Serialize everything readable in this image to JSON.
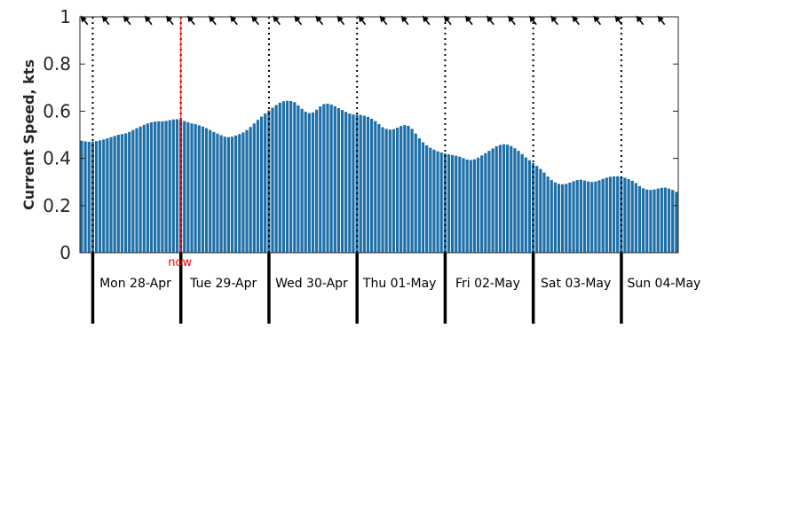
{
  "chart_data": {
    "type": "bar",
    "title": "",
    "xlabel": "",
    "ylabel": "Current Speed, kts",
    "ylim": [
      0,
      1
    ],
    "yticks": [
      "0",
      "0.2",
      "0.4",
      "0.6",
      "0.8",
      "1"
    ],
    "grid": false,
    "days": [
      "Mon 28-Apr",
      "Tue 29-Apr",
      "Wed 30-Apr",
      "Thu 01-May",
      "Fri 02-May",
      "Sat 03-May",
      "Sun 04-May"
    ],
    "now_marker": {
      "label": "now",
      "hours_after_start": 27.5
    },
    "hours_per_bar": 1,
    "series": [
      {
        "values": [
          0.475,
          0.472,
          0.47,
          0.471,
          0.473,
          0.476,
          0.48,
          0.485,
          0.49,
          0.495,
          0.5,
          0.503,
          0.506,
          0.512,
          0.52,
          0.528,
          0.535,
          0.542,
          0.548,
          0.553,
          0.556,
          0.557,
          0.557,
          0.559,
          0.562,
          0.565,
          0.566,
          0.564,
          0.558,
          0.553,
          0.548,
          0.545,
          0.54,
          0.535,
          0.528,
          0.52,
          0.512,
          0.505,
          0.498,
          0.492,
          0.49,
          0.492,
          0.497,
          0.503,
          0.51,
          0.52,
          0.533,
          0.548,
          0.563,
          0.577,
          0.59,
          0.603,
          0.615,
          0.626,
          0.636,
          0.642,
          0.644,
          0.643,
          0.638,
          0.625,
          0.61,
          0.598,
          0.592,
          0.595,
          0.606,
          0.62,
          0.63,
          0.632,
          0.628,
          0.621,
          0.613,
          0.605,
          0.597,
          0.59,
          0.586,
          0.585,
          0.584,
          0.581,
          0.576,
          0.568,
          0.558,
          0.545,
          0.532,
          0.525,
          0.522,
          0.524,
          0.53,
          0.537,
          0.541,
          0.538,
          0.525,
          0.505,
          0.485,
          0.468,
          0.455,
          0.445,
          0.437,
          0.43,
          0.425,
          0.421,
          0.417,
          0.414,
          0.411,
          0.407,
          0.401,
          0.395,
          0.393,
          0.396,
          0.403,
          0.412,
          0.422,
          0.432,
          0.442,
          0.451,
          0.457,
          0.46,
          0.458,
          0.452,
          0.443,
          0.432,
          0.418,
          0.404,
          0.392,
          0.38,
          0.368,
          0.355,
          0.34,
          0.323,
          0.308,
          0.298,
          0.292,
          0.29,
          0.292,
          0.297,
          0.303,
          0.308,
          0.31,
          0.306,
          0.302,
          0.3,
          0.302,
          0.307,
          0.313,
          0.318,
          0.322,
          0.324,
          0.324,
          0.322,
          0.318,
          0.312,
          0.305,
          0.295,
          0.282,
          0.273,
          0.268,
          0.266,
          0.268,
          0.272,
          0.275,
          0.276,
          0.272,
          0.266,
          0.258
        ]
      }
    ],
    "direction_arrow_count": 28
  }
}
